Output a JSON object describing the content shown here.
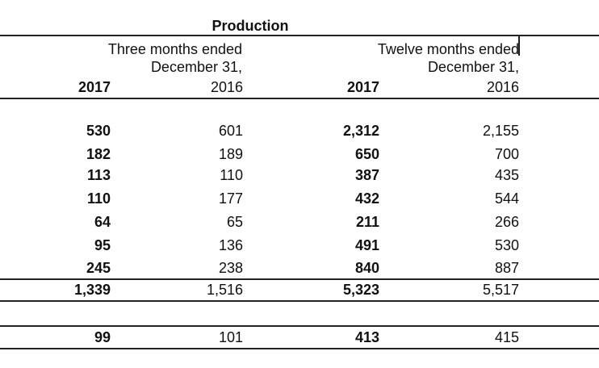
{
  "title": "Production",
  "headers": {
    "three_months_line1": "Three months ended",
    "three_months_line2": "December 31,",
    "twelve_months_line1": "Twelve months ended",
    "twelve_months_line2": "December 31,",
    "y2017_a": "2017",
    "y2016_a": "2016",
    "y2017_b": "2017",
    "y2016_b": "2016"
  },
  "rows": [
    [
      "530",
      "601",
      "2,312",
      "2,155"
    ],
    [
      "182",
      "189",
      "650",
      "700"
    ],
    [
      "113",
      "110",
      "387",
      "435"
    ],
    [
      "110",
      "177",
      "432",
      "544"
    ],
    [
      "64",
      "65",
      "211",
      "266"
    ],
    [
      "95",
      "136",
      "491",
      "530"
    ],
    [
      "245",
      "238",
      "840",
      "887"
    ]
  ],
  "total": [
    "1,339",
    "1,516",
    "5,323",
    "5,517"
  ],
  "last": [
    "99",
    "101",
    "413",
    "415"
  ]
}
